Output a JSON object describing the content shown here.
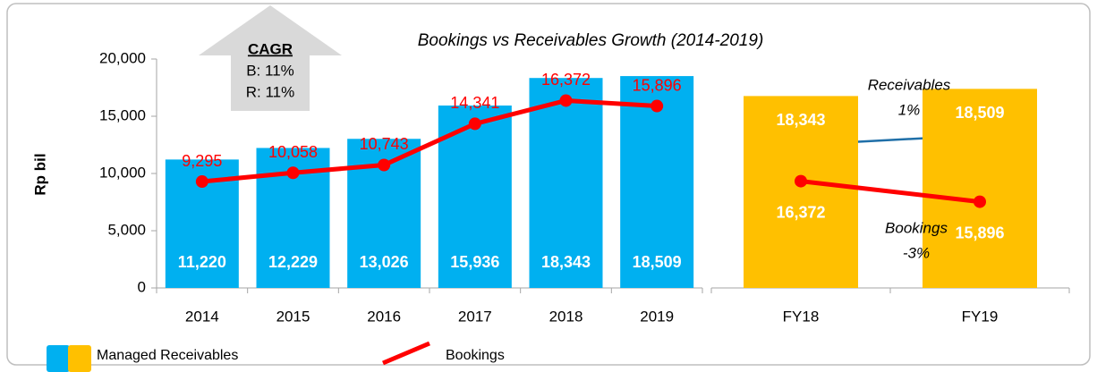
{
  "chart_data": [
    {
      "type": "bar",
      "title": "Bookings vs Receivables Growth (2014-2019)",
      "y_label": "Rp bil",
      "categories": [
        "2014",
        "2015",
        "2016",
        "2017",
        "2018",
        "2019"
      ],
      "series": [
        {
          "name": "Managed Receivables",
          "color": "#00b0f0",
          "type": "bar",
          "values": [
            11220,
            12229,
            13026,
            15936,
            18343,
            18509
          ],
          "value_labels": [
            "11,220",
            "12,229",
            "13,026",
            "15,936",
            "18,343",
            "18,509"
          ]
        },
        {
          "name": "Bookings",
          "color": "#ff0000",
          "type": "line",
          "values": [
            9295,
            10058,
            10743,
            14341,
            16372,
            15896
          ],
          "value_labels": [
            "9,295",
            "10,058",
            "10,743",
            "14,341",
            "16,372",
            "15,896"
          ]
        }
      ],
      "ylim": [
        0,
        20000
      ],
      "yticks": [
        0,
        {
          "value": 5000,
          "label": "5,000"
        },
        {
          "value": 10000,
          "label": "10,000"
        },
        {
          "value": 15000,
          "label": "15,000"
        },
        {
          "value": 20000,
          "label": "20,000"
        }
      ],
      "annotation": {
        "title": "CAGR",
        "lines": [
          "B: 11%",
          "R: 11%"
        ]
      },
      "legend_colors": [
        "#00b0f0",
        "#ffc000"
      ]
    },
    {
      "type": "bar",
      "categories": [
        "FY18",
        "FY19"
      ],
      "series": [
        {
          "color": "#ffc000",
          "type": "bar",
          "values": [
            18343,
            18509
          ],
          "value_labels": [
            "18,343",
            "18,509"
          ]
        },
        {
          "color": "#ff0000",
          "type": "line",
          "values": [
            16372,
            15896
          ],
          "value_labels": [
            "16,372",
            "15,896"
          ]
        }
      ],
      "ylim": [
        13900,
        19200
      ],
      "annotations": [
        {
          "title": "Receivables",
          "text": "1%"
        },
        {
          "title": "Bookings",
          "text": "-3%"
        }
      ]
    }
  ]
}
